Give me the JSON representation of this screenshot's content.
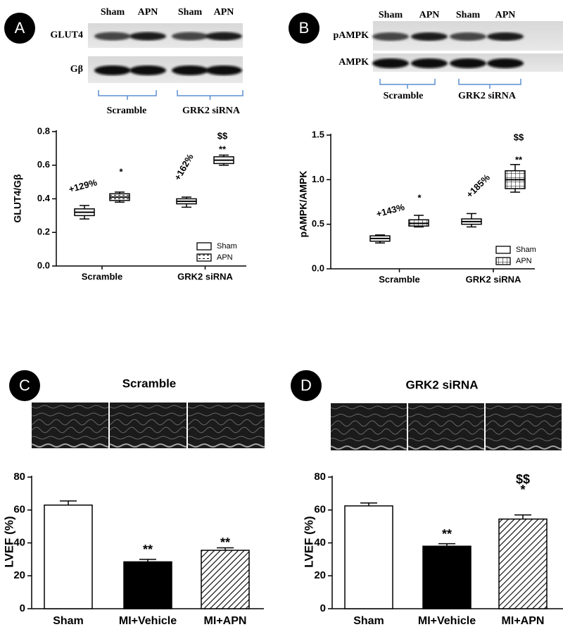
{
  "chart_data": [
    {
      "type": "box",
      "panel": "A",
      "blot": {
        "lanes": [
          "Sham",
          "APN",
          "Sham",
          "APN"
        ],
        "rows": [
          "GLUT4",
          "Gβ"
        ],
        "groups": [
          "Scramble",
          "GRK2 siRNA"
        ]
      },
      "ylabel": "GLUT4/Gβ",
      "categories": [
        "Scramble",
        "GRK2 siRNA"
      ],
      "series": [
        {
          "name": "Sham",
          "style": "plain",
          "values": [
            {
              "min": 0.28,
              "q1": 0.3,
              "median": 0.32,
              "q3": 0.34,
              "max": 0.36
            },
            {
              "min": 0.35,
              "q1": 0.37,
              "median": 0.385,
              "q3": 0.4,
              "max": 0.41
            }
          ]
        },
        {
          "name": "APN",
          "style": "dashed",
          "values": [
            {
              "min": 0.38,
              "q1": 0.39,
              "median": 0.41,
              "q3": 0.43,
              "max": 0.44
            },
            {
              "min": 0.6,
              "q1": 0.61,
              "median": 0.63,
              "q3": 0.65,
              "max": 0.66
            }
          ]
        }
      ],
      "ylim": [
        0,
        0.8
      ],
      "yticks": [
        {
          "value": 0,
          "label": "0.0"
        },
        0.2,
        0.4,
        0.6,
        0.8
      ],
      "annotations": [
        "+129%",
        "*",
        "+162%",
        "**",
        "$$"
      ],
      "legend": "lower right"
    },
    {
      "type": "box",
      "panel": "B",
      "blot": {
        "lanes": [
          "Sham",
          "APN",
          "Sham",
          "APN"
        ],
        "rows": [
          "pAMPK",
          "AMPK"
        ],
        "groups": [
          "Scramble",
          "GRK2  siRNA"
        ]
      },
      "ylabel": "pAMPK/AMPK",
      "categories": [
        "Scramble",
        "GRK2 siRNA"
      ],
      "series": [
        {
          "name": "Sham",
          "style": "plain",
          "values": [
            {
              "min": 0.29,
              "q1": 0.31,
              "median": 0.34,
              "q3": 0.37,
              "max": 0.38
            },
            {
              "min": 0.47,
              "q1": 0.5,
              "median": 0.53,
              "q3": 0.56,
              "max": 0.62
            }
          ]
        },
        {
          "name": "APN",
          "style": "grid",
          "values": [
            {
              "min": 0.47,
              "q1": 0.48,
              "median": 0.51,
              "q3": 0.55,
              "max": 0.6
            },
            {
              "min": 0.86,
              "q1": 0.9,
              "median": 1.0,
              "q3": 1.1,
              "max": 1.17
            }
          ]
        }
      ],
      "ylim": [
        0,
        1.5
      ],
      "yticks": [
        {
          "value": 0,
          "label": "0.0"
        },
        0.5,
        {
          "value": 1,
          "label": "1.0"
        },
        1.5
      ],
      "annotations": [
        "+143%",
        "*",
        "+185%",
        "**",
        "$$"
      ],
      "legend": "lower right"
    },
    {
      "type": "bar",
      "panel": "C",
      "title": "Scramble",
      "ylabel": "LVEF (%)",
      "categories": [
        "Sham",
        "MI+Vehicle",
        "MI+APN"
      ],
      "values": [
        63,
        28.5,
        35.5
      ],
      "errors": [
        2.5,
        1.5,
        1.5
      ],
      "fills": [
        "white",
        "black",
        "hatched"
      ],
      "ylim": [
        0,
        80
      ],
      "yticks": [
        0,
        20,
        40,
        60,
        80
      ],
      "annotations": [
        "**",
        "**"
      ]
    },
    {
      "type": "bar",
      "panel": "D",
      "title": "GRK2 siRNA",
      "ylabel": "LVEF (%)",
      "categories": [
        "Sham",
        "MI+Vehicle",
        "MI+APN"
      ],
      "values": [
        62.5,
        38,
        54.5
      ],
      "errors": [
        1.8,
        1.5,
        2.5
      ],
      "fills": [
        "white",
        "black",
        "hatched"
      ],
      "ylim": [
        0,
        80
      ],
      "yticks": [
        0,
        20,
        40,
        60,
        80
      ],
      "annotations": [
        "**",
        "*",
        "$$"
      ]
    }
  ]
}
